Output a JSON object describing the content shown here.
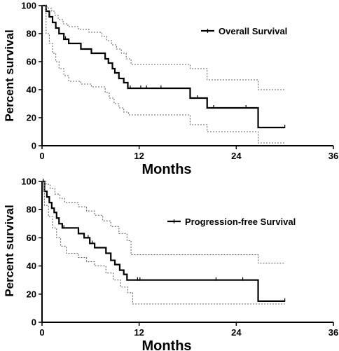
{
  "chart_data": [
    {
      "type": "line",
      "subtype": "kaplan-meier",
      "xlabel": "Months",
      "ylabel": "Percent survival",
      "xlim": [
        0,
        36
      ],
      "ylim": [
        0,
        100
      ],
      "xticks": [
        0,
        12,
        24,
        36
      ],
      "yticks": [
        0,
        20,
        40,
        60,
        80,
        100
      ],
      "legend_position": "top-right",
      "series": [
        {
          "name": "Overall Survival",
          "style": "solid",
          "x": [
            0,
            0.5,
            0.9,
            1.3,
            1.7,
            2.1,
            2.7,
            3.3,
            4.8,
            6.1,
            7.8,
            8.2,
            8.7,
            9.0,
            9.5,
            10.1,
            10.6,
            11.1,
            18.3,
            20.4,
            26.7,
            30.0
          ],
          "y": [
            100,
            96,
            92,
            88,
            84,
            80,
            76,
            73,
            69,
            66,
            62,
            59,
            55,
            52,
            48,
            45,
            41,
            41,
            34,
            27,
            13,
            13
          ],
          "censored_x": [
            2.9,
            10.9,
            12.2,
            12.9,
            14.7,
            19.2,
            21.2,
            25.2,
            30.0
          ]
        },
        {
          "name": "upper 95% CI",
          "style": "dotted",
          "x": [
            0,
            0.4,
            0.8,
            1.2,
            1.6,
            2.0,
            2.6,
            3.2,
            4.5,
            5.8,
            7.4,
            8.0,
            8.6,
            9.2,
            9.8,
            10.4,
            11.0,
            18.3,
            20.4,
            26.7,
            30.0
          ],
          "y": [
            100,
            99,
            98,
            96,
            93,
            90,
            87,
            85,
            83,
            81,
            78,
            75,
            72,
            69,
            66,
            62,
            58,
            55,
            47,
            40,
            40
          ]
        },
        {
          "name": "lower 95% CI",
          "style": "dotted",
          "x": [
            0,
            0.5,
            0.9,
            1.3,
            1.7,
            2.1,
            2.7,
            3.3,
            4.8,
            6.1,
            7.8,
            8.3,
            8.9,
            9.5,
            10.1,
            10.7,
            11.3,
            18.3,
            20.4,
            26.7,
            30.0
          ],
          "y": [
            100,
            80,
            73,
            66,
            60,
            55,
            50,
            46,
            44,
            42,
            38,
            34,
            30,
            27,
            24,
            22,
            22,
            15,
            10,
            2,
            2
          ]
        }
      ]
    },
    {
      "type": "line",
      "subtype": "kaplan-meier",
      "xlabel": "Months",
      "ylabel": "Percent survival",
      "xlim": [
        0,
        36
      ],
      "ylim": [
        0,
        100
      ],
      "xticks": [
        0,
        12,
        24,
        36
      ],
      "yticks": [
        0,
        20,
        40,
        60,
        80,
        100
      ],
      "legend_position": "right",
      "series": [
        {
          "name": "Progression-free Survival",
          "style": "solid",
          "x": [
            0,
            0.3,
            0.6,
            0.9,
            1.2,
            1.5,
            1.8,
            2.1,
            2.5,
            2.9,
            4.5,
            5.2,
            5.9,
            6.5,
            7.9,
            8.5,
            9.0,
            9.6,
            10.1,
            10.5,
            11.0,
            26.7,
            30.0
          ],
          "y": [
            100,
            93,
            89,
            85,
            81,
            78,
            74,
            70,
            67,
            67,
            63,
            60,
            56,
            53,
            49,
            44,
            41,
            37,
            34,
            30,
            30,
            15,
            15
          ],
          "censored_x": [
            0.15,
            2.7,
            5.7,
            6.2,
            11.8,
            12.1,
            21.5,
            24.8,
            30.0
          ]
        },
        {
          "name": "upper 95% CI",
          "style": "dotted",
          "x": [
            0,
            0.5,
            1.0,
            1.6,
            2.2,
            2.8,
            4.5,
            5.5,
            6.5,
            7.5,
            8.5,
            9.5,
            10.5,
            11.0,
            26.7,
            30.0
          ],
          "y": [
            100,
            98,
            95,
            91,
            88,
            85,
            82,
            79,
            76,
            72,
            68,
            63,
            58,
            48,
            42,
            42
          ]
        },
        {
          "name": "lower 95% CI",
          "style": "dotted",
          "x": [
            0,
            0.3,
            0.8,
            1.3,
            1.8,
            2.3,
            3.0,
            4.5,
            5.5,
            6.5,
            7.9,
            8.8,
            9.7,
            10.6,
            11.2,
            26.7,
            30.0
          ],
          "y": [
            100,
            83,
            75,
            67,
            60,
            54,
            49,
            46,
            43,
            40,
            35,
            30,
            25,
            21,
            13,
            13,
            13
          ]
        }
      ]
    }
  ]
}
